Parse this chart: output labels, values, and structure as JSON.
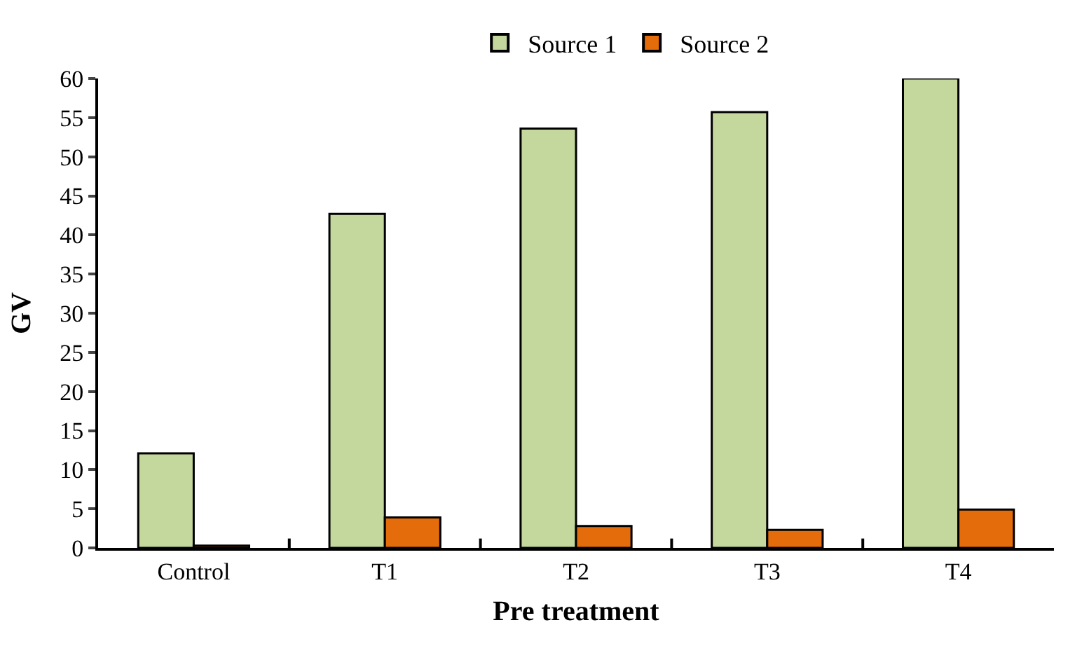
{
  "chart_data": {
    "type": "bar",
    "xlabel": "Pre treatment",
    "ylabel": "GV",
    "categories": [
      "Control",
      "T1",
      "T2",
      "T3",
      "T4"
    ],
    "series": [
      {
        "name": "Source 1",
        "color": "#c4d89d",
        "values": [
          12.1,
          42.7,
          53.6,
          55.7,
          60
        ]
      },
      {
        "name": "Source 2",
        "color": "#e46c0a",
        "values": [
          0.3,
          3.9,
          2.8,
          2.3,
          4.9
        ]
      }
    ],
    "ylim": [
      0,
      60
    ],
    "yticks": [
      0,
      5,
      10,
      15,
      20,
      25,
      30,
      35,
      40,
      45,
      50,
      55,
      60
    ],
    "legend": "top"
  }
}
